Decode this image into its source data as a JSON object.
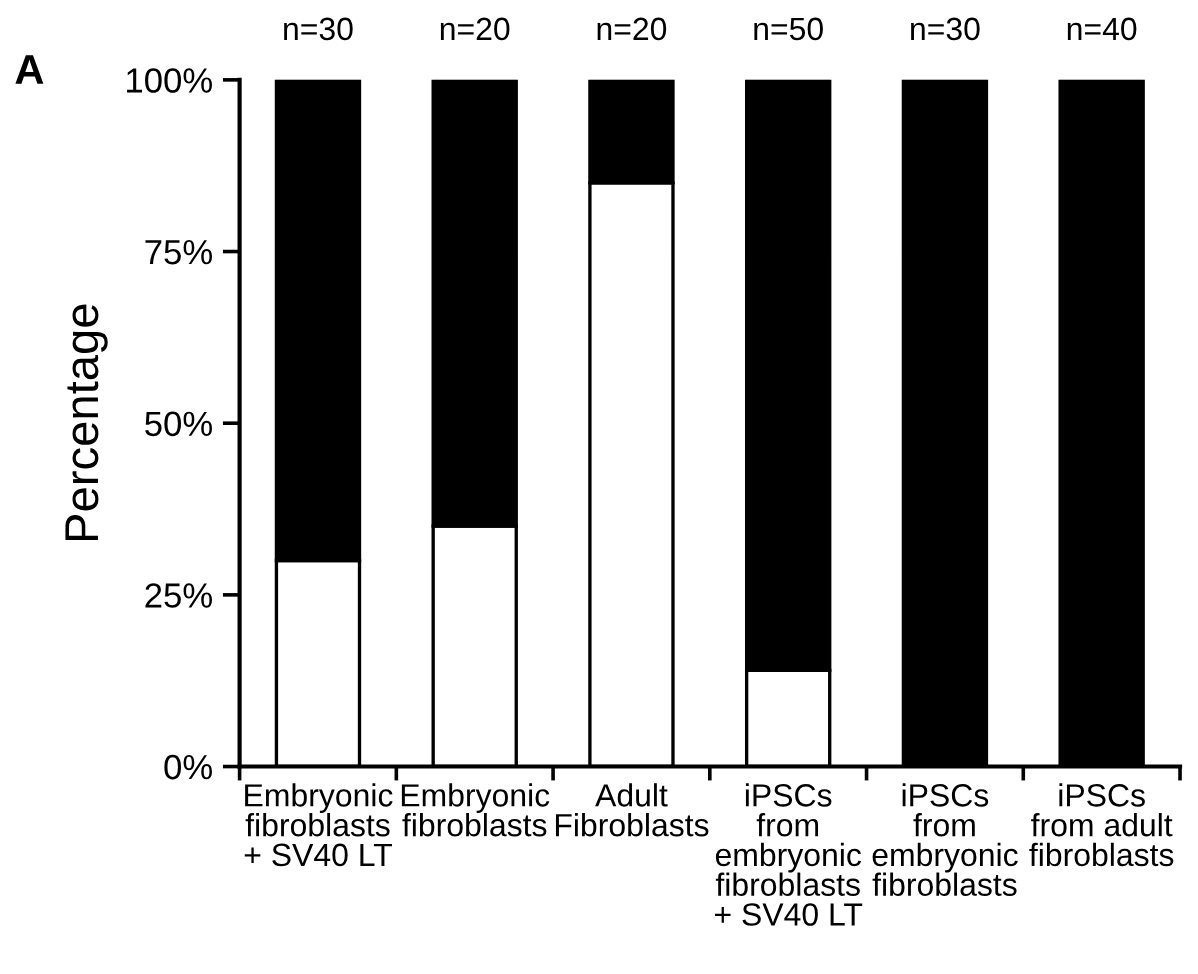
{
  "chart_data": {
    "type": "bar",
    "stacked": true,
    "ylabel": "Percentage",
    "categories": [
      "Embryonic\nfibroblasts\n+ SV40 LT",
      "Embryonic\nfibroblasts",
      "Adult\nFibroblasts",
      "iPSCs\nfrom\nembryonic\nfibroblasts\n+ SV40 LT",
      "iPSCs\nfrom\nembryonic\nfibroblasts",
      "iPSCs\nfrom adult\nfibroblasts"
    ],
    "series": [
      {
        "color": "#ffffff",
        "values": [
          30,
          35,
          85,
          14,
          0,
          0
        ]
      },
      {
        "color": "#000000",
        "values": [
          70,
          65,
          15,
          86,
          100,
          100
        ]
      }
    ],
    "ylim": [
      0,
      100
    ],
    "yticks": [
      {
        "value": 0,
        "label": "0%"
      },
      {
        "value": 25,
        "label": "25%"
      },
      {
        "value": 50,
        "label": "50%"
      },
      {
        "value": 75,
        "label": "75%"
      },
      {
        "value": 100,
        "label": "100%"
      }
    ],
    "annotations": [
      "A",
      {
        "text": "n=30",
        "x": "Embryonic\nfibroblasts\n+ SV40 LT",
        "y": 100
      },
      {
        "text": "n=20",
        "x": "Embryonic\nfibroblasts",
        "y": 100
      },
      {
        "text": "n=20",
        "x": "Adult\nFibroblasts",
        "y": 100
      },
      {
        "text": "n=50",
        "x": "iPSCs\nfrom\nembryonic\nfibroblasts\n+ SV40 LT",
        "y": 100
      },
      {
        "text": "n=30",
        "x": "iPSCs\nfrom\nembryonic\nfibroblasts",
        "y": 100
      },
      {
        "text": "n=40",
        "x": "iPSCs\nfrom adult\nfibroblasts",
        "y": 100
      }
    ]
  }
}
